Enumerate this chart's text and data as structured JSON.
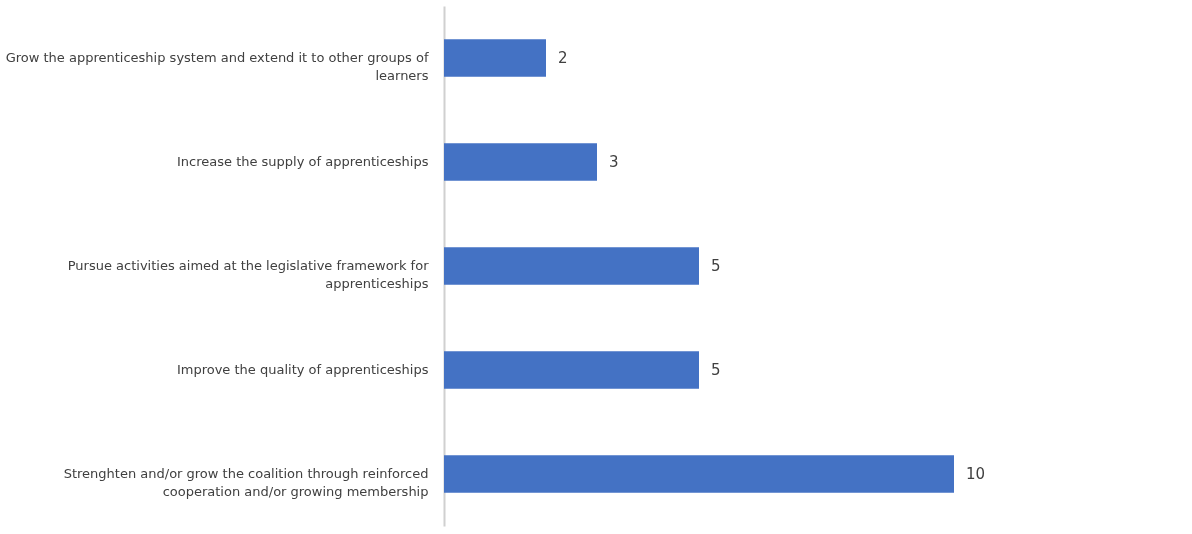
{
  "chart_data": {
    "type": "bar",
    "orientation": "horizontal",
    "data_labels": true,
    "color": "#4472c4",
    "grid": false,
    "categories": [
      "Grow the apprenticeship system and extend it to other groups of learners",
      "Increase the supply of apprenticeships",
      "Pursue activities aimed at the legislative framework for apprenticeships",
      "Improve the quality of apprenticeships",
      "Strenghten and/or grow the coalition through reinforced cooperation and/or growing membership"
    ],
    "values": [
      2,
      3,
      5,
      5,
      10
    ]
  }
}
